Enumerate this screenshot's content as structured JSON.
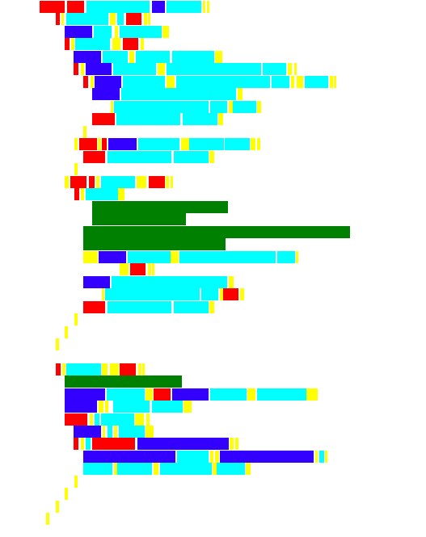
{
  "palette": {
    "red": "#ff0000",
    "cyan": "#00ffff",
    "blue": "#3300ff",
    "yellow": "#ffff00",
    "green": "#008000"
  }
}
